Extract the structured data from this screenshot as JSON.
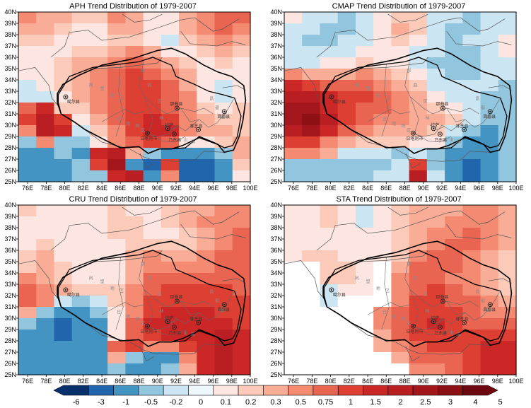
{
  "chart_data": [
    {
      "type": "heatmap",
      "title": "APH Trend Distribution of 1979-2007",
      "x_ticks": [
        "76E",
        "78E",
        "80E",
        "82E",
        "84E",
        "86E",
        "88E",
        "90E",
        "92E",
        "94E",
        "96E",
        "98E",
        "100E"
      ],
      "y_ticks": [
        "40N",
        "39N",
        "38N",
        "37N",
        "36N",
        "35N",
        "34N",
        "33N",
        "32N",
        "31N",
        "30N",
        "29N",
        "28N",
        "27N",
        "26N",
        "25N"
      ],
      "xlim": [
        75,
        100
      ],
      "ylim": [
        25,
        40
      ],
      "grid": [
        [
          0.5,
          0.3,
          0.3,
          0.2,
          0.2,
          0.5,
          0.3,
          0.1,
          0.1,
          0.3,
          0.5,
          0.75,
          0.75
        ],
        [
          0.3,
          0.3,
          0.2,
          0.1,
          0.1,
          0.3,
          0.3,
          0.1,
          0.1,
          0.3,
          0.5,
          0.75,
          0.5
        ],
        [
          0.2,
          0.2,
          0.1,
          0.1,
          0.1,
          0.2,
          0.2,
          0.1,
          -0.2,
          0.2,
          0.3,
          0.5,
          0.3
        ],
        [
          0.1,
          0.1,
          0.1,
          0.2,
          0.2,
          0.3,
          0.5,
          0.3,
          0.1,
          0.1,
          0.2,
          0.3,
          0.2
        ],
        [
          0.1,
          0.1,
          0.2,
          0.3,
          0.3,
          0.5,
          0.75,
          0.5,
          0.3,
          0.2,
          0.1,
          0.2,
          0.1
        ],
        [
          0.1,
          0.1,
          0.2,
          0.3,
          0.5,
          0.75,
          1,
          0.75,
          0.5,
          0.3,
          0.1,
          0.1,
          0.1
        ],
        [
          -0.2,
          0.1,
          0.2,
          0.3,
          0.5,
          0.75,
          1,
          1,
          0.75,
          0.3,
          0.1,
          -0.2,
          0.1
        ],
        [
          -0.2,
          -0.2,
          0.1,
          0.3,
          0.5,
          0.75,
          1,
          1,
          0.75,
          0.5,
          0.1,
          -0.2,
          0.1
        ],
        [
          0.75,
          1.5,
          0.2,
          0.2,
          0.5,
          0.75,
          1,
          1,
          0.75,
          0.5,
          0.2,
          0.1,
          0.2
        ],
        [
          1,
          2,
          1,
          0.1,
          0.3,
          0.75,
          1,
          1.5,
          1,
          0.5,
          0.3,
          0.2,
          0.2
        ],
        [
          0.5,
          2,
          1.5,
          -0.2,
          0.2,
          0.5,
          1,
          1.5,
          1.5,
          0.5,
          0.3,
          0.3,
          0.2
        ],
        [
          -0.5,
          0.5,
          -0.5,
          -0.5,
          0.1,
          0.5,
          0.75,
          1,
          0.75,
          0.1,
          0.1,
          0.2,
          0.3
        ],
        [
          -1,
          -1,
          -0.5,
          -1,
          1.5,
          2,
          0.3,
          -0.5,
          -1,
          -1,
          -1,
          -0.5,
          0.3
        ],
        [
          -1,
          -1,
          -1,
          -0.5,
          1,
          2.5,
          -1,
          -3,
          1,
          -3,
          -3,
          -1,
          0.2
        ],
        [
          -1,
          -1,
          -1,
          -0.5,
          -0.5,
          1.5,
          2,
          -1,
          0.5,
          -3,
          -3,
          -1,
          0.1
        ]
      ]
    },
    {
      "type": "heatmap",
      "title": "CMAP Trend Distribution of 1979-2007",
      "x_ticks": [
        "76E",
        "78E",
        "80E",
        "82E",
        "84E",
        "86E",
        "88E",
        "90E",
        "92E",
        "94E",
        "96E",
        "98E",
        "100E"
      ],
      "y_ticks": [
        "40N",
        "39N",
        "38N",
        "37N",
        "36N",
        "35N",
        "34N",
        "33N",
        "32N",
        "31N",
        "30N",
        "29N",
        "28N",
        "27N",
        "26N",
        "25N"
      ],
      "xlim": [
        75,
        100
      ],
      "ylim": [
        25,
        40
      ],
      "grid": [
        [
          0.1,
          -0.2,
          -0.2,
          -0.5,
          -0.2,
          0.1,
          0.2,
          0.2,
          -0.2,
          -0.2,
          -0.5,
          -0.2,
          -0.2
        ],
        [
          -0.2,
          -0.2,
          -0.5,
          -0.5,
          -0.2,
          0.1,
          0.3,
          0.2,
          -0.2,
          -0.5,
          -0.5,
          -0.2,
          -0.2
        ],
        [
          -0.2,
          -0.5,
          -0.5,
          -0.2,
          -0.2,
          0.1,
          0.2,
          0.1,
          -0.2,
          -0.5,
          -0.2,
          -0.2,
          0.1
        ],
        [
          -0.2,
          -0.2,
          -0.2,
          -0.2,
          0.1,
          0.1,
          0.1,
          -0.2,
          -0.2,
          -0.5,
          -0.5,
          -0.2,
          0.1
        ],
        [
          -0.2,
          -0.2,
          0.1,
          0.1,
          0.2,
          0.1,
          0.1,
          -0.2,
          -0.5,
          -0.5,
          -0.5,
          -0.2,
          -0.2
        ],
        [
          0.5,
          0.3,
          0.3,
          0.3,
          0.5,
          0.3,
          0.2,
          0.1,
          -0.2,
          -0.5,
          -0.5,
          -0.2,
          -0.2
        ],
        [
          1.5,
          1,
          0.75,
          0.75,
          0.75,
          0.5,
          0.3,
          0.2,
          -0.2,
          -0.2,
          -0.2,
          -0.2,
          -0.5
        ],
        [
          2,
          2,
          1.5,
          1,
          1,
          0.75,
          0.5,
          0.3,
          0.1,
          -0.2,
          -0.2,
          -0.5,
          -0.5
        ],
        [
          2.5,
          2.5,
          1.5,
          1,
          0.75,
          0.75,
          0.5,
          0.3,
          0.2,
          0.1,
          -0.2,
          -0.5,
          -0.5
        ],
        [
          2.5,
          3,
          2,
          1,
          0.75,
          0.5,
          0.5,
          0.3,
          0.3,
          0.2,
          -0.2,
          -0.5,
          -0.5
        ],
        [
          2,
          2.5,
          1.5,
          0.75,
          0.5,
          0.3,
          0.3,
          0.3,
          0.2,
          -0.2,
          -0.5,
          -1,
          -0.5
        ],
        [
          1,
          1,
          0.5,
          0.3,
          0.2,
          0.2,
          0.2,
          0.1,
          0.1,
          -0.5,
          -1,
          -1,
          -0.5
        ],
        [
          0.5,
          0.5,
          0.3,
          -0.2,
          -0.2,
          -0.2,
          -0.5,
          -0.2,
          -0.5,
          -1,
          -1,
          -1,
          -0.5
        ],
        [
          -0.5,
          -0.5,
          -0.5,
          -0.5,
          -0.5,
          -0.5,
          -0.2,
          1,
          -0.5,
          -1,
          -3,
          -1,
          -0.5
        ],
        [
          -0.5,
          -0.5,
          -0.5,
          -0.5,
          -0.5,
          -0.2,
          -0.2,
          2,
          -0.2,
          -1,
          -3,
          -1,
          -0.5
        ]
      ]
    },
    {
      "type": "heatmap",
      "title": "CRU Trend Distribution of 1979-2007",
      "x_ticks": [
        "76E",
        "78E",
        "80E",
        "82E",
        "84E",
        "86E",
        "88E",
        "90E",
        "92E",
        "94E",
        "96E",
        "98E",
        "100E"
      ],
      "y_ticks": [
        "40N",
        "39N",
        "38N",
        "37N",
        "36N",
        "35N",
        "34N",
        "33N",
        "32N",
        "31N",
        "30N",
        "29N",
        "28N",
        "27N",
        "26N",
        "25N"
      ],
      "xlim": [
        75,
        100
      ],
      "ylim": [
        25,
        40
      ],
      "grid": [
        [
          0.2,
          0.1,
          0.1,
          0.1,
          0.1,
          0.2,
          0.1,
          0.1,
          0.2,
          0.3,
          0.3,
          0.5,
          0.5
        ],
        [
          0.1,
          0.1,
          0.1,
          0.1,
          0.1,
          0.2,
          0.2,
          0.1,
          0.2,
          0.3,
          0.5,
          0.5,
          0.5
        ],
        [
          0.1,
          0.1,
          0.1,
          0.1,
          0.1,
          0.2,
          0.2,
          0.1,
          0.1,
          0.2,
          0.3,
          0.5,
          0.75
        ],
        [
          0.1,
          0.2,
          0.1,
          0.1,
          0.1,
          0.1,
          0.2,
          0.2,
          0.2,
          0.2,
          0.3,
          0.5,
          0.75
        ],
        [
          0.2,
          0.3,
          0.1,
          0.1,
          0.1,
          0.1,
          0.3,
          0.5,
          0.3,
          0.3,
          0.5,
          0.75,
          0.75
        ],
        [
          0.2,
          0.3,
          0.2,
          0.1,
          0.1,
          0.1,
          0.3,
          0.5,
          0.5,
          0.5,
          0.5,
          0.75,
          0.75
        ],
        [
          0.5,
          0.3,
          0.2,
          0.1,
          0.1,
          0.1,
          0.3,
          0.75,
          0.75,
          0.75,
          0.75,
          0.75,
          0.75
        ],
        [
          0.75,
          0.5,
          0.3,
          0.2,
          0.2,
          0.2,
          0.5,
          0.75,
          1,
          1,
          1,
          1,
          0.75
        ],
        [
          0.75,
          0.5,
          -0.2,
          -0.5,
          -0.2,
          0.2,
          0.5,
          1,
          1,
          1,
          1,
          1,
          1
        ],
        [
          0.3,
          -0.5,
          -1,
          -1,
          -0.5,
          0.1,
          0.5,
          1,
          1.5,
          1.5,
          1.5,
          1,
          1
        ],
        [
          -0.5,
          -1,
          -3,
          -1,
          -1,
          0.1,
          0.75,
          1.5,
          1.5,
          1.5,
          1.5,
          1.5,
          1
        ],
        [
          -1,
          -1,
          -3,
          -1,
          -1,
          0.1,
          0.75,
          1,
          1.5,
          1.5,
          1.5,
          2,
          1.5
        ],
        [
          -1,
          -1,
          -1,
          -1,
          -1,
          0.75,
          1,
          0.5,
          0.5,
          1,
          1.5,
          2,
          1.5
        ],
        [
          -1,
          -1,
          -1,
          -1,
          -1,
          0.3,
          -0.5,
          -1,
          -1,
          0.5,
          1.5,
          2,
          1.5
        ],
        [
          -1,
          -1,
          -1,
          -1,
          -1,
          -0.5,
          -1,
          -1,
          -0.5,
          0.3,
          1.5,
          2,
          1.5
        ]
      ]
    },
    {
      "type": "heatmap",
      "title": "STA Trend Distribution of 1979-2007",
      "x_ticks": [
        "76E",
        "78E",
        "80E",
        "82E",
        "84E",
        "86E",
        "88E",
        "90E",
        "92E",
        "94E",
        "96E",
        "98E",
        "100E"
      ],
      "y_ticks": [
        "40N",
        "39N",
        "38N",
        "37N",
        "36N",
        "35N",
        "34N",
        "33N",
        "32N",
        "31N",
        "30N",
        "29N",
        "28N",
        "27N",
        "26N",
        "25N"
      ],
      "xlim": [
        75,
        100
      ],
      "ylim": [
        25,
        40
      ],
      "grid": [
        [
          0.1,
          0.1,
          0.2,
          0.1,
          -0.2,
          0.1,
          0.2,
          0.3,
          0.3,
          0.3,
          0.5,
          0.5,
          0.3
        ],
        [
          0.1,
          0.1,
          0.2,
          0.1,
          -0.2,
          0.1,
          0.2,
          0.3,
          0.3,
          0.5,
          0.5,
          0.5,
          0.3
        ],
        [
          0.1,
          0.1,
          0.1,
          0.1,
          0.1,
          0.1,
          0.2,
          0.3,
          0.5,
          0.5,
          0.75,
          0.5,
          0.3
        ],
        [
          0.1,
          0.1,
          0.1,
          0.1,
          0.1,
          0.1,
          0.2,
          0.3,
          0.5,
          0.75,
          0.75,
          0.5,
          0.3
        ],
        [
          0.1,
          0.2,
          0.2,
          0.1,
          0.1,
          0.1,
          0.2,
          0.5,
          0.75,
          0.75,
          0.5,
          0.3,
          0.2
        ],
        [
          null,
          null,
          0.2,
          0.2,
          0.1,
          null,
          0.3,
          0.75,
          0.75,
          0.75,
          0.5,
          0.3,
          0.2
        ],
        [
          null,
          null,
          0.2,
          0.2,
          0.1,
          null,
          0.5,
          0.75,
          0.75,
          0.5,
          0.5,
          0.3,
          0.2
        ],
        [
          null,
          null,
          -0.2,
          0.1,
          0.1,
          null,
          0.5,
          0.75,
          1,
          0.75,
          0.5,
          0.3,
          0.2
        ],
        [
          null,
          null,
          -0.2,
          null,
          null,
          null,
          0.5,
          1,
          1,
          0.75,
          0.75,
          0.5,
          0.3
        ],
        [
          null,
          null,
          null,
          null,
          null,
          0.5,
          0.75,
          1,
          1,
          1,
          0.75,
          0.5,
          0.5
        ],
        [
          null,
          null,
          null,
          null,
          null,
          0.5,
          0.75,
          1,
          1.5,
          1,
          0.75,
          0.75,
          0.75
        ],
        [
          null,
          null,
          null,
          null,
          null,
          0.3,
          0.75,
          1,
          1,
          1,
          1,
          1,
          1
        ],
        [
          null,
          null,
          null,
          null,
          null,
          0.3,
          0.5,
          0.75,
          1,
          1,
          1,
          1.5,
          1.5
        ],
        [
          null,
          null,
          null,
          null,
          null,
          null,
          0.3,
          0.75,
          0.75,
          0.75,
          1,
          1.5,
          1.5
        ],
        [
          null,
          null,
          null,
          null,
          null,
          null,
          null,
          0.5,
          0.5,
          0.75,
          1,
          1.5,
          1.5
        ]
      ]
    }
  ],
  "map_labels": [
    "噶尔县",
    "那曲县",
    "昌都县",
    "林芝县",
    "拉萨",
    "日喀则市",
    "乃东县",
    "阿",
    "里",
    "地",
    "区",
    "那",
    "曲",
    "区",
    "日",
    "喀",
    "则",
    "区",
    "昌",
    "都",
    "区",
    "山",
    "南",
    "林"
  ],
  "colorbar": {
    "labels": [
      "-6",
      "-3",
      "-1",
      "-0.5",
      "-0.2",
      "0",
      "0.1",
      "0.2",
      "0.3",
      "0.5",
      "0.75",
      "1",
      "1.5",
      "2",
      "2.5",
      "3",
      "4",
      "5"
    ],
    "colors": [
      "#08306b",
      "#2166ac",
      "#4393c3",
      "#92c5de",
      "#cce5f2",
      "#eef7fb",
      "#fde6e1",
      "#fbcab8",
      "#f9ad96",
      "#f48a72",
      "#ea6551",
      "#dd4033",
      "#cc2727",
      "#b81e22",
      "#a3161b",
      "#8d1015",
      "#6e080f"
    ]
  }
}
